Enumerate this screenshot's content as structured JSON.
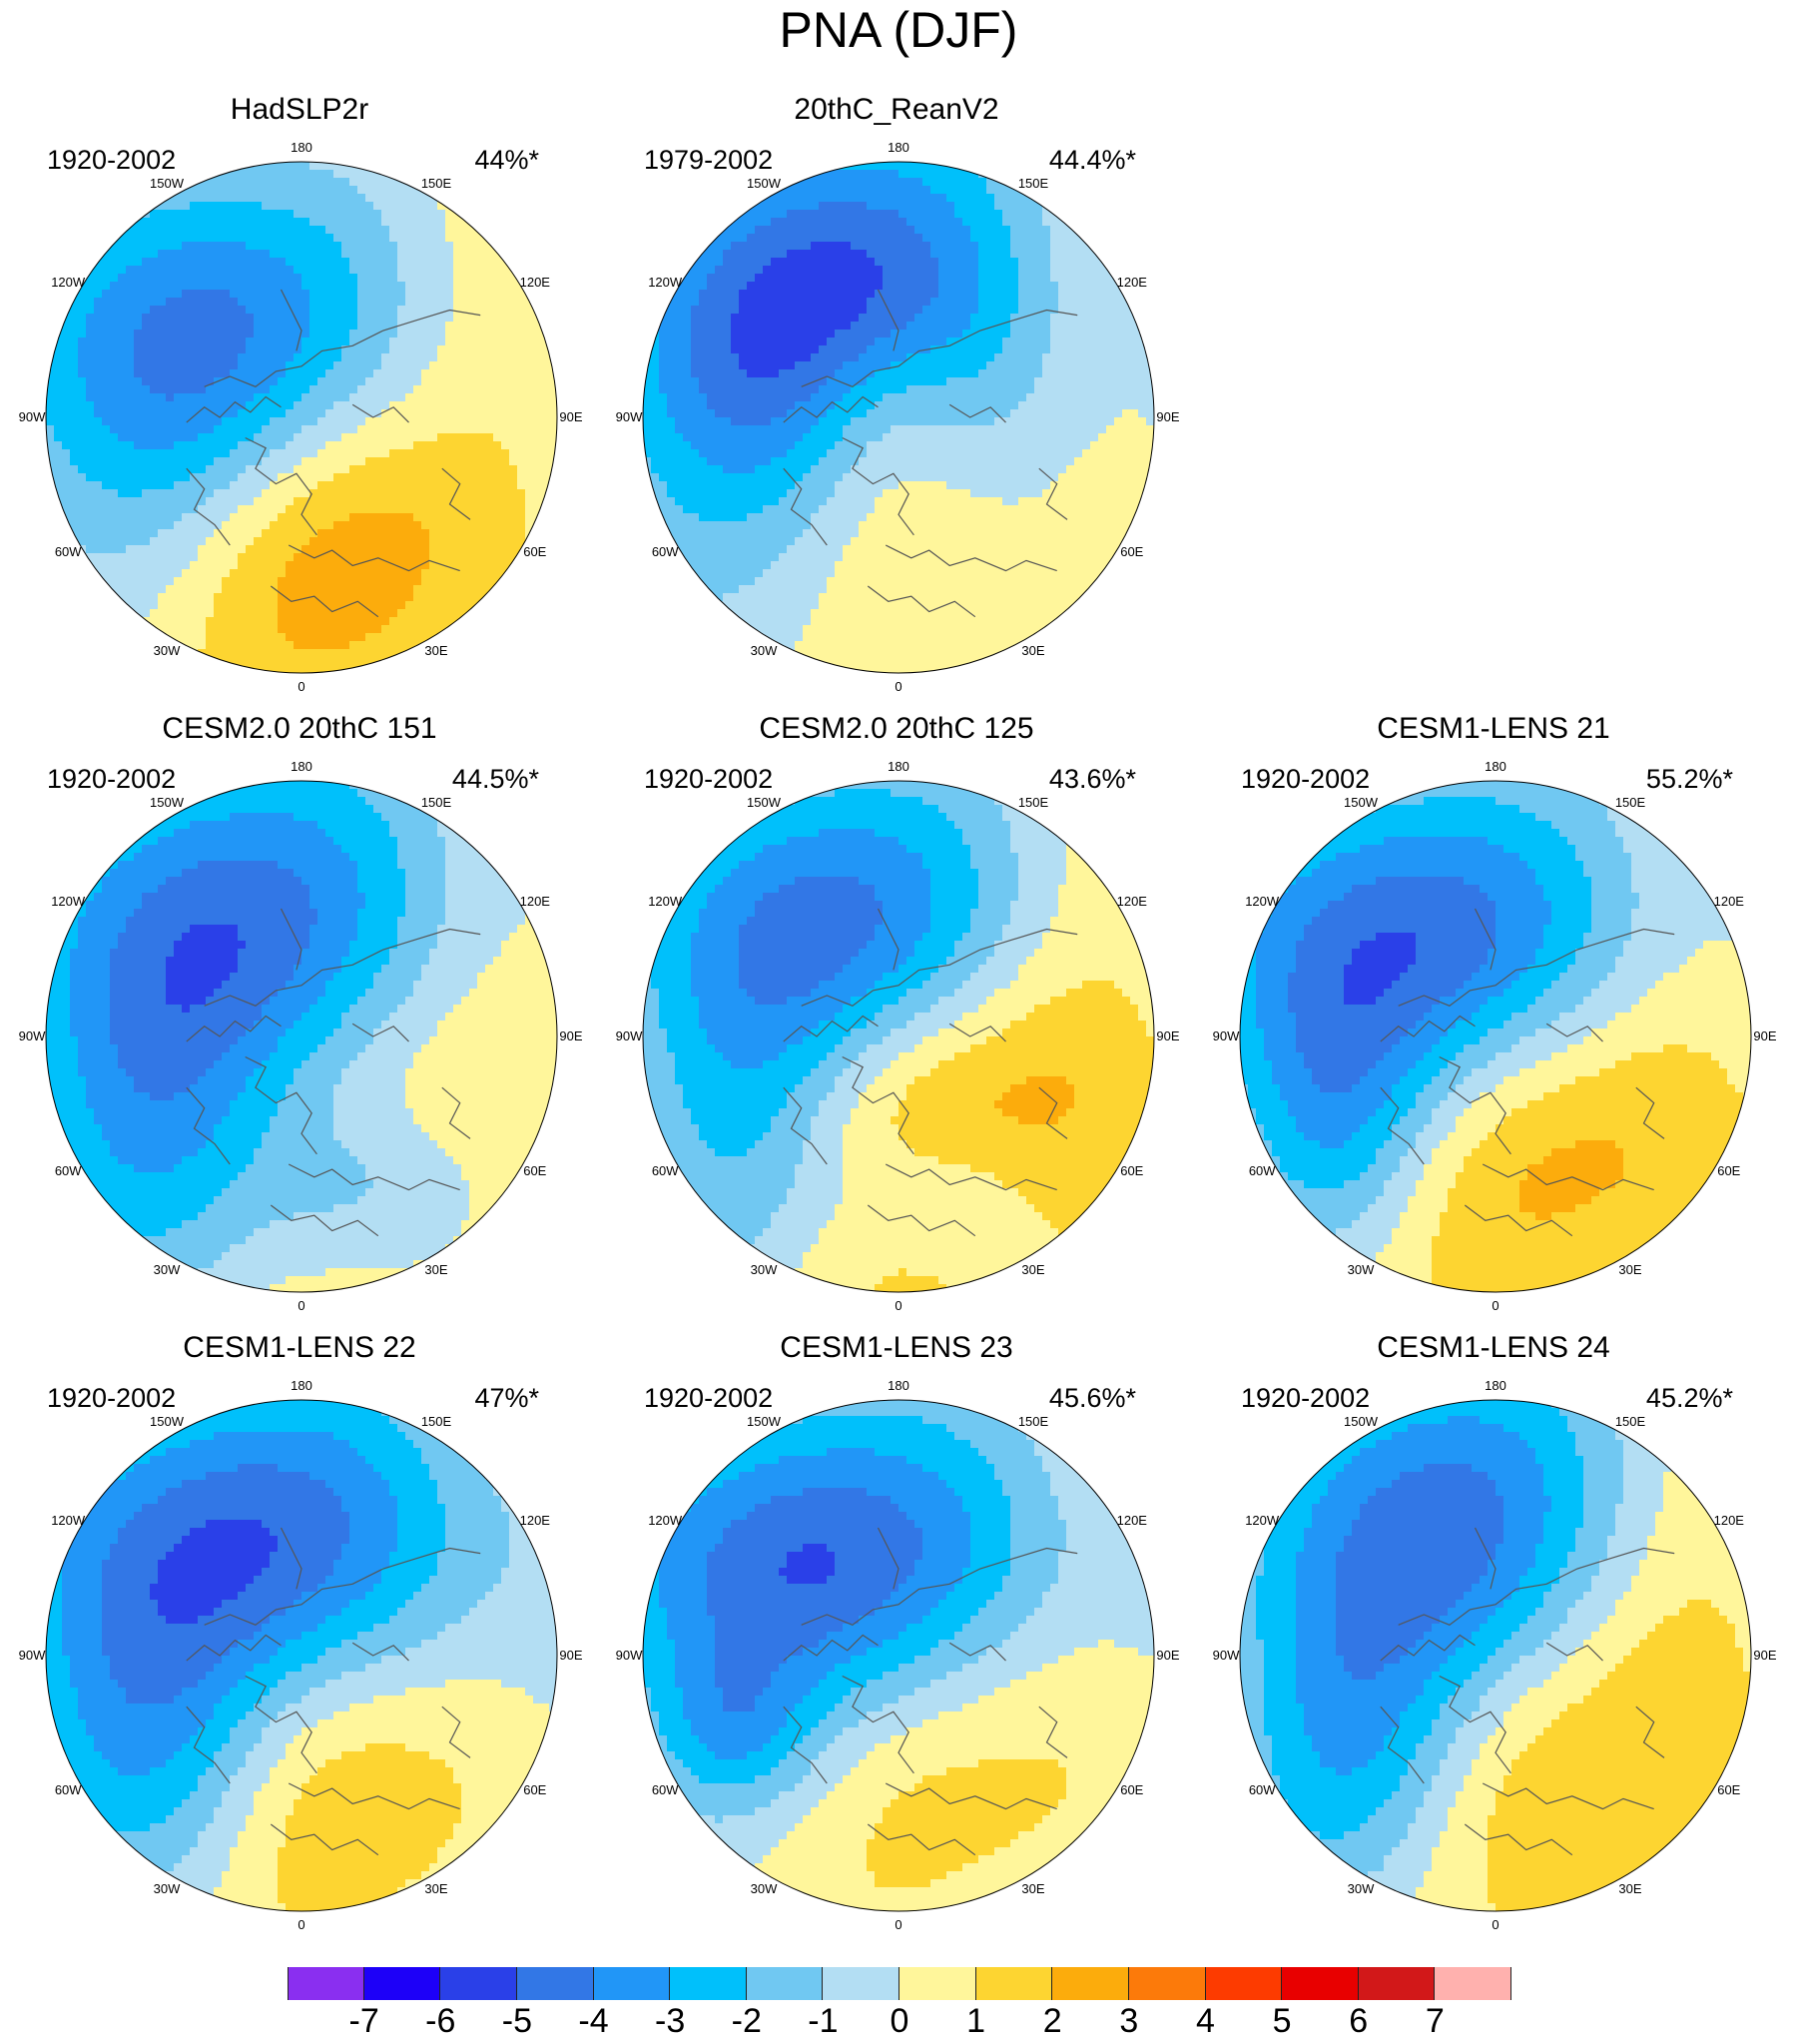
{
  "figure": {
    "title": "PNA (DJF)"
  },
  "panels": [
    {
      "title": "HadSLP2r",
      "period": "1920-2002",
      "percent": "44%*",
      "low": {
        "c": [
          0.78,
          0.71
        ],
        "peak": -5.6,
        "sx": 0.9,
        "sy": 0.7
      },
      "high": {
        "c": [
          0.98,
          1.05
        ],
        "peak": 2.4,
        "sx": 0.8,
        "sy": 1.1
      },
      "extra": [
        {
          "c": [
            1.15,
            1.45
          ],
          "peak": 1.3,
          "sx": 0.6,
          "sy": 0.6
        }
      ]
    },
    {
      "title": "20thC_ReanV2",
      "period": "1979-2002",
      "percent": "44.4%*",
      "low": {
        "c": [
          0.78,
          0.66
        ],
        "peak": -6.2,
        "sx": 0.85,
        "sy": 0.75
      },
      "high": {
        "c": [
          0.85,
          1.22
        ],
        "peak": 2.3,
        "sx": 0.55,
        "sy": 0.6
      },
      "extra": [
        {
          "c": [
            0.95,
            0.92
          ],
          "peak": 1.8,
          "sx": 0.35,
          "sy": 0.4
        }
      ]
    },
    {
      "title": "CESM2.0 20thC 151",
      "period": "1920-2002",
      "percent": "44.5%*",
      "low": {
        "c": [
          0.85,
          0.66
        ],
        "peak": -6.3,
        "sx": 0.95,
        "sy": 0.75
      },
      "high": {
        "c": [
          0.95,
          1.1
        ],
        "peak": 3.2,
        "sx": 0.95,
        "sy": 0.9
      },
      "extra": [
        {
          "c": [
            0.45,
            1.5
          ],
          "peak": -2.4,
          "sx": 0.55,
          "sy": 0.75
        },
        {
          "c": [
            1.25,
            1.6
          ],
          "peak": -2.2,
          "sx": 0.5,
          "sy": 0.35
        }
      ]
    },
    {
      "title": "CESM2.0 20thC 125",
      "period": "1920-2002",
      "percent": "43.6%*",
      "low": {
        "c": [
          0.82,
          0.65
        ],
        "peak": -6.1,
        "sx": 0.85,
        "sy": 0.65
      },
      "high": {
        "c": [
          0.95,
          1.17
        ],
        "peak": 4.2,
        "sx": 0.9,
        "sy": 0.8
      },
      "extra": [
        {
          "c": [
            0.4,
            1.45
          ],
          "peak": -2.3,
          "sx": 0.45,
          "sy": 0.65
        },
        {
          "c": [
            1.15,
            1.62
          ],
          "peak": -2.1,
          "sx": 0.45,
          "sy": 0.3
        }
      ]
    },
    {
      "title": "CESM1-LENS 21",
      "period": "1920-2002",
      "percent": "55.2%*",
      "low": {
        "c": [
          0.85,
          0.68
        ],
        "peak": -6.2,
        "sx": 1.0,
        "sy": 0.65
      },
      "high": {
        "c": [
          1.1,
          1.14
        ],
        "peak": 3.3,
        "sx": 0.9,
        "sy": 0.85
      },
      "extra": [
        {
          "c": [
            0.38,
            1.35
          ],
          "peak": -2.1,
          "sx": 0.35,
          "sy": 0.5
        }
      ]
    },
    {
      "title": "CESM1-LENS 22",
      "period": "1920-2002",
      "percent": "47%*",
      "low": {
        "c": [
          0.9,
          0.66
        ],
        "peak": -6.2,
        "sx": 1.0,
        "sy": 0.7
      },
      "high": {
        "c": [
          0.95,
          1.22
        ],
        "peak": 3.2,
        "sx": 0.75,
        "sy": 0.8
      },
      "extra": [
        {
          "c": [
            0.45,
            1.45
          ],
          "peak": -2.3,
          "sx": 0.5,
          "sy": 0.6
        }
      ]
    },
    {
      "title": "CESM1-LENS 23",
      "period": "1920-2002",
      "percent": "45.6%*",
      "low": {
        "c": [
          0.82,
          0.68
        ],
        "peak": -5.9,
        "sx": 1.05,
        "sy": 0.65
      },
      "high": {
        "c": [
          0.95,
          1.12
        ],
        "peak": 2.3,
        "sx": 0.95,
        "sy": 0.8
      },
      "extra": [
        {
          "c": [
            0.35,
            1.3
          ],
          "peak": -2.0,
          "sx": 0.3,
          "sy": 0.3
        }
      ]
    },
    {
      "title": "CESM1-LENS 24",
      "period": "1920-2002",
      "percent": "45.2%*",
      "low": {
        "c": [
          0.85,
          0.62
        ],
        "peak": -6.1,
        "sx": 0.8,
        "sy": 0.75
      },
      "high": {
        "c": [
          1.0,
          1.13
        ],
        "peak": 3.2,
        "sx": 0.9,
        "sy": 0.85
      },
      "extra": [
        {
          "c": [
            0.45,
            1.45
          ],
          "peak": -2.4,
          "sx": 0.45,
          "sy": 0.6
        }
      ]
    }
  ],
  "longitude_labels": [
    "180",
    "150E",
    "120E",
    "90E",
    "60E",
    "30E",
    "0",
    "30W",
    "60W",
    "90W",
    "120W",
    "150W"
  ],
  "colorbar": {
    "labels": [
      "-7",
      "-6",
      "-5",
      "-4",
      "-3",
      "-2",
      "-1",
      "0",
      "1",
      "2",
      "3",
      "4",
      "5",
      "6",
      "7"
    ],
    "levels": [
      -7,
      -6,
      -5,
      -4,
      -3,
      -2,
      -1,
      0,
      1,
      2,
      3,
      4,
      5,
      6,
      7
    ],
    "colors": [
      "#8a2ff0",
      "#1d00f8",
      "#2a40e8",
      "#3277e6",
      "#2196f7",
      "#00c0fb",
      "#70c8f2",
      "#b3def3",
      "#fff69b",
      "#fdd531",
      "#fcac0c",
      "#fc7a0a",
      "#fd3b00",
      "#e80000",
      "#d21819",
      "#ffb1ae"
    ]
  },
  "map_colors": {
    "coastline": "#555555",
    "border": "#000000"
  }
}
